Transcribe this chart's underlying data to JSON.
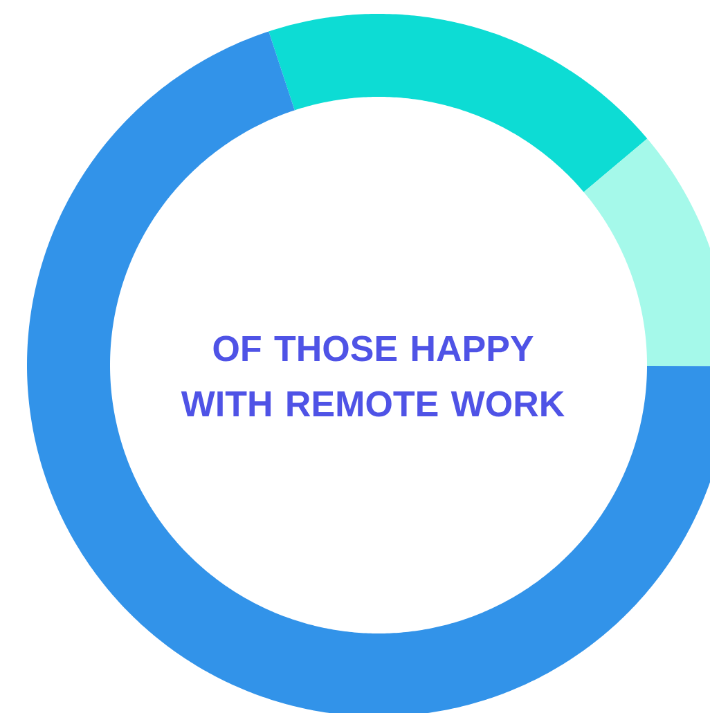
{
  "chart_data": {
    "type": "donut",
    "title": "OF THOSE HAPPY WITH REMOTE WORK",
    "categories": [
      null,
      null,
      null
    ],
    "values": [
      18.9,
      11.2,
      69.9
    ],
    "colors": [
      "#0ddcd4",
      "#a5f9ea",
      "#3293e9"
    ]
  }
}
